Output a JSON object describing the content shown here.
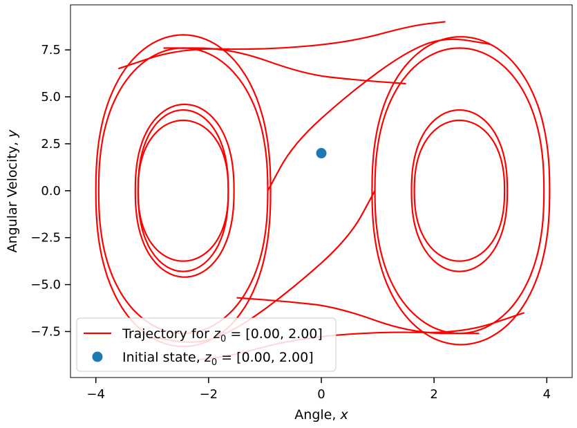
{
  "chart_data": {
    "type": "line",
    "xlabel": "Angle, x",
    "ylabel": "Angular Velocity, y",
    "xlim": [
      -4.45,
      4.45
    ],
    "ylim": [
      -9.95,
      9.9
    ],
    "xticks": [
      -4,
      -2,
      0,
      2,
      4
    ],
    "xtick_labels": [
      "−4",
      "−2",
      "0",
      "2",
      "4"
    ],
    "yticks": [
      -7.5,
      -5.0,
      -2.5,
      0.0,
      2.5,
      5.0,
      7.5
    ],
    "ytick_labels": [
      "−7.5",
      "−5.0",
      "−2.5",
      "0.0",
      "2.5",
      "5.0",
      "7.5"
    ],
    "grid": false,
    "legend_position": "lower-left",
    "series": [
      {
        "name": "Trajectory for z0 = [0.00, 2.00]",
        "kind": "line",
        "color": "#ff0000",
        "orbits": [
          {
            "x_min": -1.65,
            "x_max": -3.25,
            "y_half": 3.75,
            "cx": -2.45
          },
          {
            "x_min": -3.25,
            "x_max": -1.65,
            "y_half": 4.3,
            "cx": -2.45
          },
          {
            "x_min": -3.3,
            "x_max": -1.55,
            "y_half": 4.6,
            "cx": -2.5
          },
          {
            "x_min": -3.95,
            "x_max": -0.95,
            "y_half": 7.6,
            "cx": -2.5
          },
          {
            "x_min": -4.0,
            "x_max": -0.9,
            "y_half": 8.3,
            "cx": -2.5
          },
          {
            "x_min": 1.65,
            "x_max": 3.25,
            "y_half": 3.75,
            "cx": 2.45
          },
          {
            "x_min": 1.6,
            "x_max": 3.3,
            "y_half": 4.3,
            "cx": 2.5
          },
          {
            "x_min": 0.95,
            "x_max": 3.95,
            "y_half": 7.6,
            "cx": 2.5
          },
          {
            "x_min": 0.9,
            "x_max": 4.05,
            "y_half": 8.2,
            "cx": 2.5
          }
        ],
        "connectors": [
          {
            "x": [
              -0.95,
              -0.5,
              0.5,
              1.5,
              2.2,
              3.0
            ],
            "y": [
              0.0,
              2.5,
              5.2,
              7.4,
              8.2,
              7.8
            ]
          },
          {
            "x": [
              -3.6,
              -2.5,
              -1.0,
              0.5,
              1.6,
              2.2
            ],
            "y": [
              6.5,
              7.6,
              7.5,
              7.9,
              8.8,
              9.0
            ]
          },
          {
            "x": [
              0.95,
              0.5,
              -0.5,
              -1.5,
              -2.2,
              -3.0
            ],
            "y": [
              0.0,
              -2.5,
              -5.2,
              -7.4,
              -8.2,
              -7.8
            ]
          },
          {
            "x": [
              3.6,
              2.5,
              1.0,
              -0.5,
              -1.6,
              -2.2
            ],
            "y": [
              -6.5,
              -7.6,
              -7.5,
              -7.9,
              -8.8,
              -9.0
            ]
          },
          {
            "x": [
              -2.8,
              -1.6,
              -0.3,
              0.6,
              1.5
            ],
            "y": [
              7.6,
              7.6,
              6.2,
              5.9,
              5.7
            ]
          },
          {
            "x": [
              2.8,
              1.6,
              0.3,
              -0.6,
              -1.5
            ],
            "y": [
              -7.6,
              -7.6,
              -6.2,
              -5.9,
              -5.7
            ]
          }
        ]
      },
      {
        "name": "Initial state, z0 = [0.00, 2.00]",
        "kind": "scatter",
        "color": "#1f77b4",
        "x": [
          0.0
        ],
        "y": [
          2.0
        ]
      }
    ],
    "legend": [
      {
        "prefix": "Trajectory for ",
        "var": "z",
        "sub": "0",
        "suffix": " = [0.00, 2.00]"
      },
      {
        "prefix": "Initial state, ",
        "var": "z",
        "sub": "0",
        "suffix": " = [0.00, 2.00]"
      }
    ]
  }
}
